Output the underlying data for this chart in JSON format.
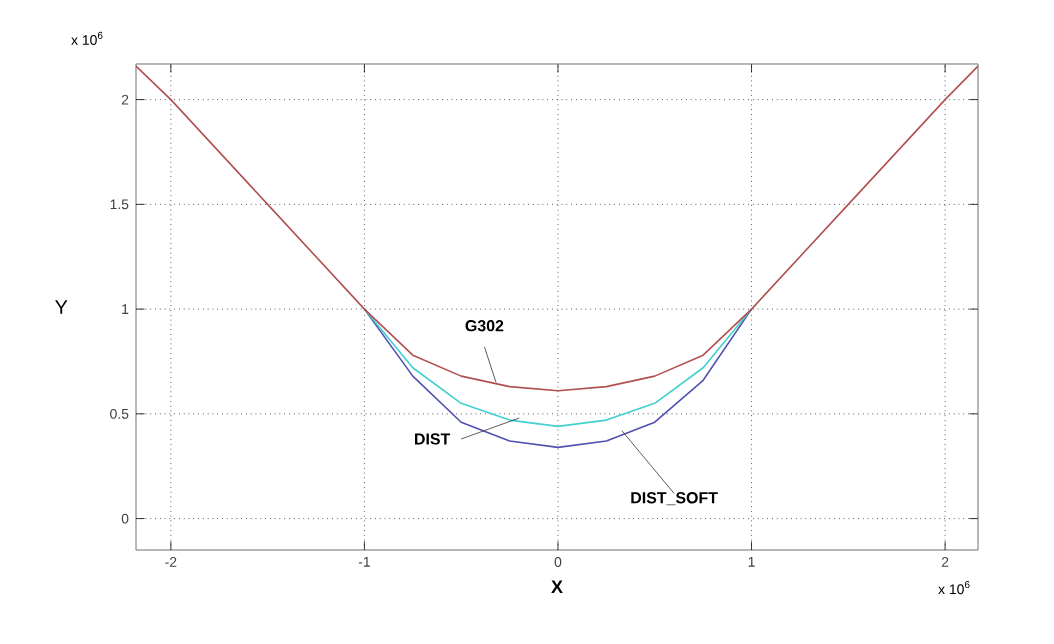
{
  "chart_data": {
    "type": "line",
    "xlabel": "X",
    "ylabel": "Y",
    "xlim": [
      -2.18,
      2.17
    ],
    "ylim": [
      -0.15,
      2.17
    ],
    "xticks": [
      -2,
      -1,
      0,
      1,
      2
    ],
    "yticks": [
      0,
      0.5,
      1,
      1.5,
      2
    ],
    "grid": true,
    "legend": false,
    "line_style": "solid",
    "annotations": [
      "x 10$^{6}$",
      "x 10$^{6}$"
    ],
    "series": [
      {
        "name": "G302",
        "color": "#b05050",
        "x": [
          -2.18,
          -2,
          -1.5,
          -1,
          -0.75,
          -0.5,
          -0.25,
          0,
          0.25,
          0.5,
          0.75,
          1,
          1.5,
          2,
          2.17
        ],
        "values": [
          2.16,
          2,
          1.5,
          1,
          0.78,
          0.68,
          0.63,
          0.61,
          0.63,
          0.68,
          0.78,
          1,
          1.5,
          2,
          2.16
        ]
      },
      {
        "name": "DIST",
        "color": "#40d0d0",
        "x": [
          -1,
          -0.75,
          -0.5,
          -0.25,
          0,
          0.25,
          0.5,
          0.75,
          1
        ],
        "values": [
          1,
          0.72,
          0.55,
          0.47,
          0.44,
          0.47,
          0.55,
          0.72,
          1
        ]
      },
      {
        "name": "DIST_SOFT",
        "color": "#5050b0",
        "x": [
          -1,
          -0.75,
          -0.5,
          -0.25,
          0,
          0.25,
          0.5,
          0.75,
          1
        ],
        "values": [
          1,
          0.68,
          0.46,
          0.37,
          0.34,
          0.37,
          0.46,
          0.66,
          1
        ]
      }
    ]
  }
}
